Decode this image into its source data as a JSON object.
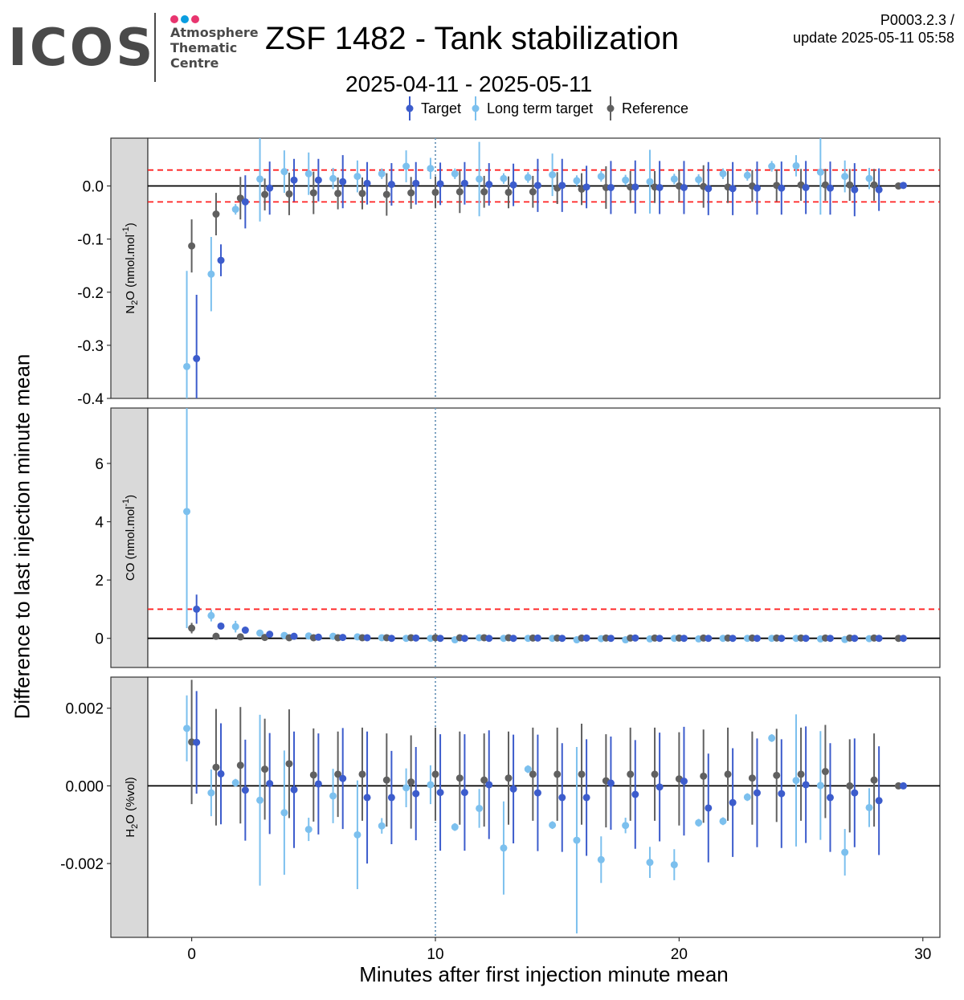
{
  "logo": {
    "wordmark": "ICOS",
    "line1": "Atmosphere",
    "line2": "Thematic",
    "line3": "Centre",
    "dot_colors": [
      "#e8356f",
      "#0a9de0",
      "#e8356f"
    ]
  },
  "header": {
    "title": "ZSF 1482 - Tank stabilization",
    "subtitle": "2025-04-11 - 2025-05-11",
    "version": "P0003.2.3 /",
    "update": "update  2025-05-11 05:58"
  },
  "chart_data": {
    "type": "scatter",
    "xlabel": "Minutes after first injection minute mean",
    "ylabel": "Difference to last injection minute mean",
    "x_ticks": [
      "0",
      "10",
      "20",
      "30"
    ],
    "xlim": [
      -1.8,
      30.7
    ],
    "vline_x": 10,
    "legend": {
      "position": "top",
      "entries": [
        {
          "name": "Target",
          "color": "#3c5ccc"
        },
        {
          "name": "Long term target",
          "color": "#7cc0ee"
        },
        {
          "name": "Reference",
          "color": "#606060"
        }
      ]
    },
    "panels": [
      {
        "strip": "N2O (nmol.mol-1)",
        "strip_main": "N",
        "strip_sub": "2",
        "strip_tail": "O (nmol.mol",
        "strip_sup": "-1",
        "strip_end": ")",
        "ylim": [
          -0.4,
          0.09
        ],
        "y_ticks": [
          "0.0",
          "-0.1",
          "-0.2",
          "-0.3",
          "-0.4"
        ],
        "y_tick_values": [
          0,
          -0.1,
          -0.2,
          -0.3,
          -0.4
        ],
        "threshold": [
          -0.03,
          0.03
        ],
        "series": [
          {
            "name": "Target",
            "y": [
              -0.325,
              -0.14,
              -0.03,
              -0.004,
              0.011,
              0.011,
              0.008,
              0.005,
              0.003,
              0.005,
              0.004,
              0.005,
              0.003,
              0.002,
              0.001,
              0.001,
              -0.002,
              -0.003,
              -0.002,
              -0.003,
              -0.003,
              -0.005,
              -0.005,
              -0.004,
              -0.004,
              -0.003,
              -0.004,
              -0.007,
              -0.007,
              0.001
            ],
            "err": [
              0.12,
              0.03,
              0.05,
              0.05,
              0.04,
              0.04,
              0.05,
              0.04,
              0.04,
              0.04,
              0.04,
              0.04,
              0.04,
              0.04,
              0.05,
              0.05,
              0.04,
              0.05,
              0.05,
              0.05,
              0.05,
              0.05,
              0.05,
              0.05,
              0.05,
              0.05,
              0.05,
              0.05,
              0.04,
              0
            ]
          },
          {
            "name": "Long term target",
            "y": [
              -0.34,
              -0.166,
              -0.044,
              0.013,
              0.027,
              0.023,
              0.014,
              0.018,
              0.023,
              0.037,
              0.033,
              0.023,
              0.013,
              0.014,
              0.016,
              0.021,
              0.01,
              0.018,
              0.011,
              0.008,
              0.013,
              0.012,
              0.023,
              0.02,
              0.037,
              0.038,
              0.026,
              0.018,
              0.014,
              null
            ],
            "err": [
              0.18,
              0.07,
              0.01,
              0.08,
              0.04,
              0.04,
              0.02,
              0.03,
              0.01,
              0.03,
              0.02,
              0.01,
              0.07,
              0.01,
              0.01,
              0.04,
              0.01,
              0.01,
              0.01,
              0.06,
              0.01,
              0.01,
              0.01,
              0.01,
              0.01,
              0.02,
              0.08,
              0.03,
              0.02,
              0
            ]
          },
          {
            "name": "Reference",
            "y": [
              -0.113,
              -0.053,
              -0.023,
              -0.016,
              -0.015,
              -0.013,
              -0.014,
              -0.014,
              -0.016,
              -0.013,
              -0.012,
              -0.011,
              -0.011,
              -0.012,
              -0.011,
              -0.004,
              -0.006,
              -0.003,
              -0.002,
              -0.002,
              0.0,
              -0.001,
              -0.002,
              0.0,
              0.001,
              0.002,
              0.002,
              0.002,
              0.002,
              0.0
            ],
            "err": [
              0.05,
              0.04,
              0.04,
              0.03,
              0.04,
              0.04,
              0.03,
              0.03,
              0.04,
              0.03,
              0.03,
              0.04,
              0.03,
              0.03,
              0.03,
              0.03,
              0.03,
              0.04,
              0.03,
              0.03,
              0.03,
              0.04,
              0.03,
              0.03,
              0.03,
              0.03,
              0.03,
              0.03,
              0.03,
              0
            ]
          }
        ]
      },
      {
        "strip": "CO (nmol.mol-1)",
        "strip_main": "CO (nmol.mol",
        "strip_sub": "",
        "strip_tail": "",
        "strip_sup": "-1",
        "strip_end": ")",
        "ylim": [
          -1.0,
          7.9
        ],
        "y_ticks": [
          "6",
          "4",
          "2",
          "0"
        ],
        "y_tick_values": [
          6,
          4,
          2,
          0
        ],
        "threshold": [
          1.0
        ],
        "series": [
          {
            "name": "Target",
            "y": [
              1.0,
              0.42,
              0.28,
              0.14,
              0.07,
              0.04,
              0.03,
              0.02,
              0.0,
              0.01,
              0.0,
              0.0,
              0.0,
              0.0,
              0.01,
              0.0,
              0.01,
              0.0,
              0.01,
              0.0,
              0.0,
              0.0,
              0.0,
              0.0,
              0.0,
              0.0,
              0.0,
              0.0,
              0.0,
              0.0
            ],
            "err": [
              0.5,
              0.06,
              0.05,
              0.04,
              0.04,
              0.04,
              0.04,
              0.04,
              0.04,
              0.04,
              0.04,
              0.04,
              0.04,
              0.04,
              0.04,
              0.04,
              0.04,
              0.04,
              0.04,
              0.04,
              0.04,
              0.04,
              0.04,
              0.04,
              0.04,
              0.04,
              0.04,
              0.04,
              0.04,
              0
            ]
          },
          {
            "name": "Long term target",
            "y": [
              4.35,
              0.78,
              0.4,
              0.18,
              0.1,
              0.08,
              0.07,
              0.05,
              0.02,
              0.0,
              0.0,
              -0.05,
              0.02,
              0.0,
              0.0,
              0.0,
              -0.05,
              -0.01,
              -0.05,
              -0.02,
              0.0,
              -0.02,
              0.0,
              0.0,
              0.0,
              0.0,
              -0.02,
              -0.04,
              -0.01,
              null
            ],
            "err": [
              4.0,
              0.2,
              0.2,
              0.05,
              0.04,
              0.04,
              0.04,
              0.04,
              0.04,
              0.04,
              0.04,
              0.04,
              0.04,
              0.04,
              0.04,
              0.04,
              0.04,
              0.04,
              0.04,
              0.04,
              0.04,
              0.04,
              0.04,
              0.04,
              0.04,
              0.04,
              0.04,
              0.04,
              0.04,
              0
            ]
          },
          {
            "name": "Reference",
            "y": [
              0.35,
              0.07,
              0.05,
              0.03,
              0.02,
              0.02,
              0.02,
              0.02,
              0.02,
              0.02,
              0.02,
              0.02,
              0.02,
              0.02,
              0.01,
              0.01,
              0.01,
              0.01,
              0.01,
              0.01,
              0.01,
              0.01,
              0.01,
              0.01,
              0.01,
              0.01,
              0.01,
              0.01,
              0.01,
              0.0
            ],
            "err": [
              0.18,
              0.05,
              0.05,
              0.04,
              0.04,
              0.04,
              0.04,
              0.04,
              0.04,
              0.04,
              0.04,
              0.04,
              0.04,
              0.04,
              0.04,
              0.04,
              0.04,
              0.04,
              0.04,
              0.04,
              0.04,
              0.04,
              0.04,
              0.04,
              0.04,
              0.04,
              0.04,
              0.04,
              0.04,
              0
            ]
          }
        ]
      },
      {
        "strip": "H2O (%vol)",
        "strip_main": "H",
        "strip_sub": "2",
        "strip_tail": "O (%vol)",
        "strip_sup": "",
        "strip_end": "",
        "ylim": [
          -0.0039,
          0.0028
        ],
        "y_ticks": [
          "0.002",
          "0.000",
          "-0.002"
        ],
        "y_tick_values": [
          0.002,
          0.0,
          -0.002
        ],
        "threshold": [],
        "series": [
          {
            "name": "Target",
            "y": [
              0.00112,
              0.00031,
              -0.00011,
              6e-05,
              -0.0001,
              5e-05,
              0.00019,
              -0.0003,
              -0.0003,
              -0.0002,
              -0.00017,
              -0.00017,
              3e-05,
              -8e-05,
              -0.00018,
              -0.0003,
              -0.0003,
              7e-05,
              -0.00022,
              -3e-05,
              0.00012,
              -0.00057,
              -0.00043,
              -0.00018,
              -0.0002,
              3e-05,
              -0.0003,
              -0.00018,
              -0.00038,
              0.0
            ],
            "err": [
              0.00132,
              0.0013,
              0.0013,
              0.0013,
              0.0015,
              0.0013,
              0.0013,
              0.0017,
              0.0012,
              0.0012,
              0.0015,
              0.0015,
              0.0014,
              0.0014,
              0.0015,
              0.0014,
              0.0015,
              0.0012,
              0.0014,
              0.0014,
              0.0014,
              0.0014,
              0.0014,
              0.0014,
              0.0014,
              0.0015,
              0.0014,
              0.0014,
              0.0014,
              0
            ]
          },
          {
            "name": "Long term target",
            "y": [
              0.00148,
              -0.00018,
              8e-05,
              -0.00037,
              -0.00069,
              -0.00112,
              -0.00026,
              -0.00126,
              -0.00103,
              -5e-05,
              3e-05,
              -0.00106,
              -0.00058,
              -0.0016,
              0.00043,
              -0.00101,
              -0.0014,
              -0.0019,
              -0.00102,
              -0.00197,
              -0.00203,
              -0.00095,
              -0.00091,
              -0.00029,
              0.00123,
              0.00014,
              1e-05,
              -0.00171,
              -0.00056,
              null
            ],
            "err": [
              0.00085,
              0.0006,
              0.0001,
              0.0022,
              0.0016,
              0.0003,
              0.0007,
              0.0014,
              0.0002,
              0.0005,
              0.0005,
              0.0001,
              0.0005,
              0.0012,
              0.0001,
              0.0001,
              0.0024,
              0.0006,
              0.0002,
              0.0004,
              0.0004,
              0.0001,
              0.0001,
              0.0001,
              0.0001,
              0.0017,
              0.0014,
              0.0006,
              0.0005,
              0
            ]
          },
          {
            "name": "Reference",
            "y": [
              0.00113,
              0.00048,
              0.00053,
              0.00043,
              0.00057,
              0.00028,
              0.0003,
              0.0003,
              0.00015,
              0.0001,
              0.0003,
              0.0002,
              0.00015,
              0.0002,
              0.0003,
              0.0003,
              0.0003,
              0.00013,
              0.0003,
              0.0003,
              0.00018,
              0.00025,
              0.0003,
              0.0002,
              0.00027,
              0.0003,
              0.00037,
              0.0,
              0.00015,
              0.0
            ],
            "err": [
              0.0016,
              0.0015,
              0.0015,
              0.0013,
              0.0014,
              0.0012,
              0.0011,
              0.0012,
              0.0012,
              0.0012,
              0.0012,
              0.0012,
              0.0012,
              0.0012,
              0.0012,
              0.0012,
              0.0013,
              0.0012,
              0.0012,
              0.0012,
              0.0012,
              0.0012,
              0.0012,
              0.0012,
              0.0012,
              0.0012,
              0.0012,
              0.0012,
              0.0012,
              0
            ]
          }
        ]
      }
    ]
  }
}
